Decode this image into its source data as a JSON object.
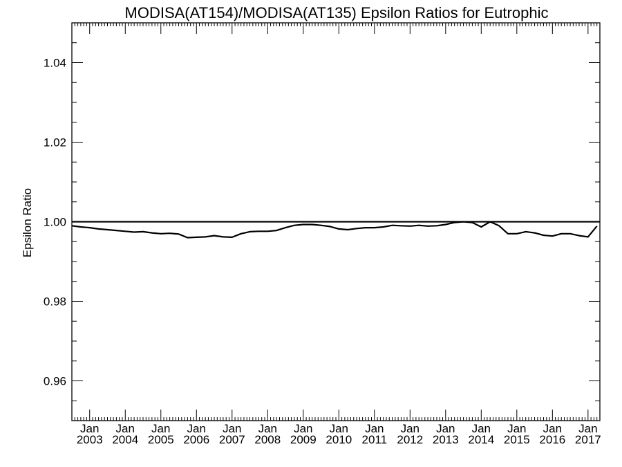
{
  "chart_data": {
    "type": "line",
    "title": "MODISA(AT154)/MODISA(AT135)  Epsilon Ratios for Eutrophic",
    "xlabel": "",
    "ylabel": "Epsilon Ratio",
    "ylim": [
      0.95,
      1.05
    ],
    "yticks": [
      0.96,
      0.98,
      1.0,
      1.02,
      1.04
    ],
    "ytick_labels": [
      "0.96",
      "0.98",
      "1.00",
      "1.02",
      "1.04"
    ],
    "xlim": [
      "2002-07",
      "2017-05"
    ],
    "xticks": [
      "2003-01",
      "2004-01",
      "2005-01",
      "2006-01",
      "2007-01",
      "2008-01",
      "2009-01",
      "2010-01",
      "2011-01",
      "2012-01",
      "2013-01",
      "2014-01",
      "2015-01",
      "2016-01",
      "2017-01"
    ],
    "xtick_labels": [
      {
        "month": "Jan",
        "year": "2003"
      },
      {
        "month": "Jan",
        "year": "2004"
      },
      {
        "month": "Jan",
        "year": "2005"
      },
      {
        "month": "Jan",
        "year": "2006"
      },
      {
        "month": "Jan",
        "year": "2007"
      },
      {
        "month": "Jan",
        "year": "2008"
      },
      {
        "month": "Jan",
        "year": "2009"
      },
      {
        "month": "Jan",
        "year": "2010"
      },
      {
        "month": "Jan",
        "year": "2011"
      },
      {
        "month": "Jan",
        "year": "2012"
      },
      {
        "month": "Jan",
        "year": "2013"
      },
      {
        "month": "Jan",
        "year": "2014"
      },
      {
        "month": "Jan",
        "year": "2015"
      },
      {
        "month": "Jan",
        "year": "2016"
      },
      {
        "month": "Jan",
        "year": "2017"
      }
    ],
    "reference_line": 1.0,
    "grid": false,
    "series": [
      {
        "color": "#000000",
        "x": [
          "2002-07",
          "2002-10",
          "2003-01",
          "2003-04",
          "2003-07",
          "2003-10",
          "2004-01",
          "2004-04",
          "2004-07",
          "2004-10",
          "2005-01",
          "2005-04",
          "2005-07",
          "2005-10",
          "2006-01",
          "2006-04",
          "2006-07",
          "2006-10",
          "2007-01",
          "2007-04",
          "2007-07",
          "2007-10",
          "2008-01",
          "2008-04",
          "2008-07",
          "2008-10",
          "2009-01",
          "2009-04",
          "2009-07",
          "2009-10",
          "2010-01",
          "2010-04",
          "2010-07",
          "2010-10",
          "2011-01",
          "2011-04",
          "2011-07",
          "2011-10",
          "2012-01",
          "2012-04",
          "2012-07",
          "2012-10",
          "2013-01",
          "2013-04",
          "2013-07",
          "2013-10",
          "2014-01",
          "2014-04",
          "2014-07",
          "2014-10",
          "2015-01",
          "2015-04",
          "2015-07",
          "2015-10",
          "2016-01",
          "2016-04",
          "2016-07",
          "2016-10",
          "2017-01",
          "2017-04"
        ],
        "y": [
          0.999,
          0.9987,
          0.9985,
          0.9982,
          0.998,
          0.9978,
          0.9976,
          0.9974,
          0.9975,
          0.9972,
          0.997,
          0.9971,
          0.9969,
          0.996,
          0.9961,
          0.9962,
          0.9965,
          0.9962,
          0.9961,
          0.997,
          0.9975,
          0.9976,
          0.9976,
          0.9978,
          0.9985,
          0.9991,
          0.9993,
          0.9993,
          0.9991,
          0.9988,
          0.9982,
          0.998,
          0.9983,
          0.9985,
          0.9985,
          0.9987,
          0.9991,
          0.999,
          0.9989,
          0.9991,
          0.9989,
          0.999,
          0.9993,
          0.9998,
          1.0,
          0.9998,
          0.9987,
          1.0,
          0.999,
          0.997,
          0.997,
          0.9975,
          0.9972,
          0.9966,
          0.9964,
          0.997,
          0.997,
          0.9965,
          0.9962,
          0.9989
        ]
      }
    ]
  }
}
